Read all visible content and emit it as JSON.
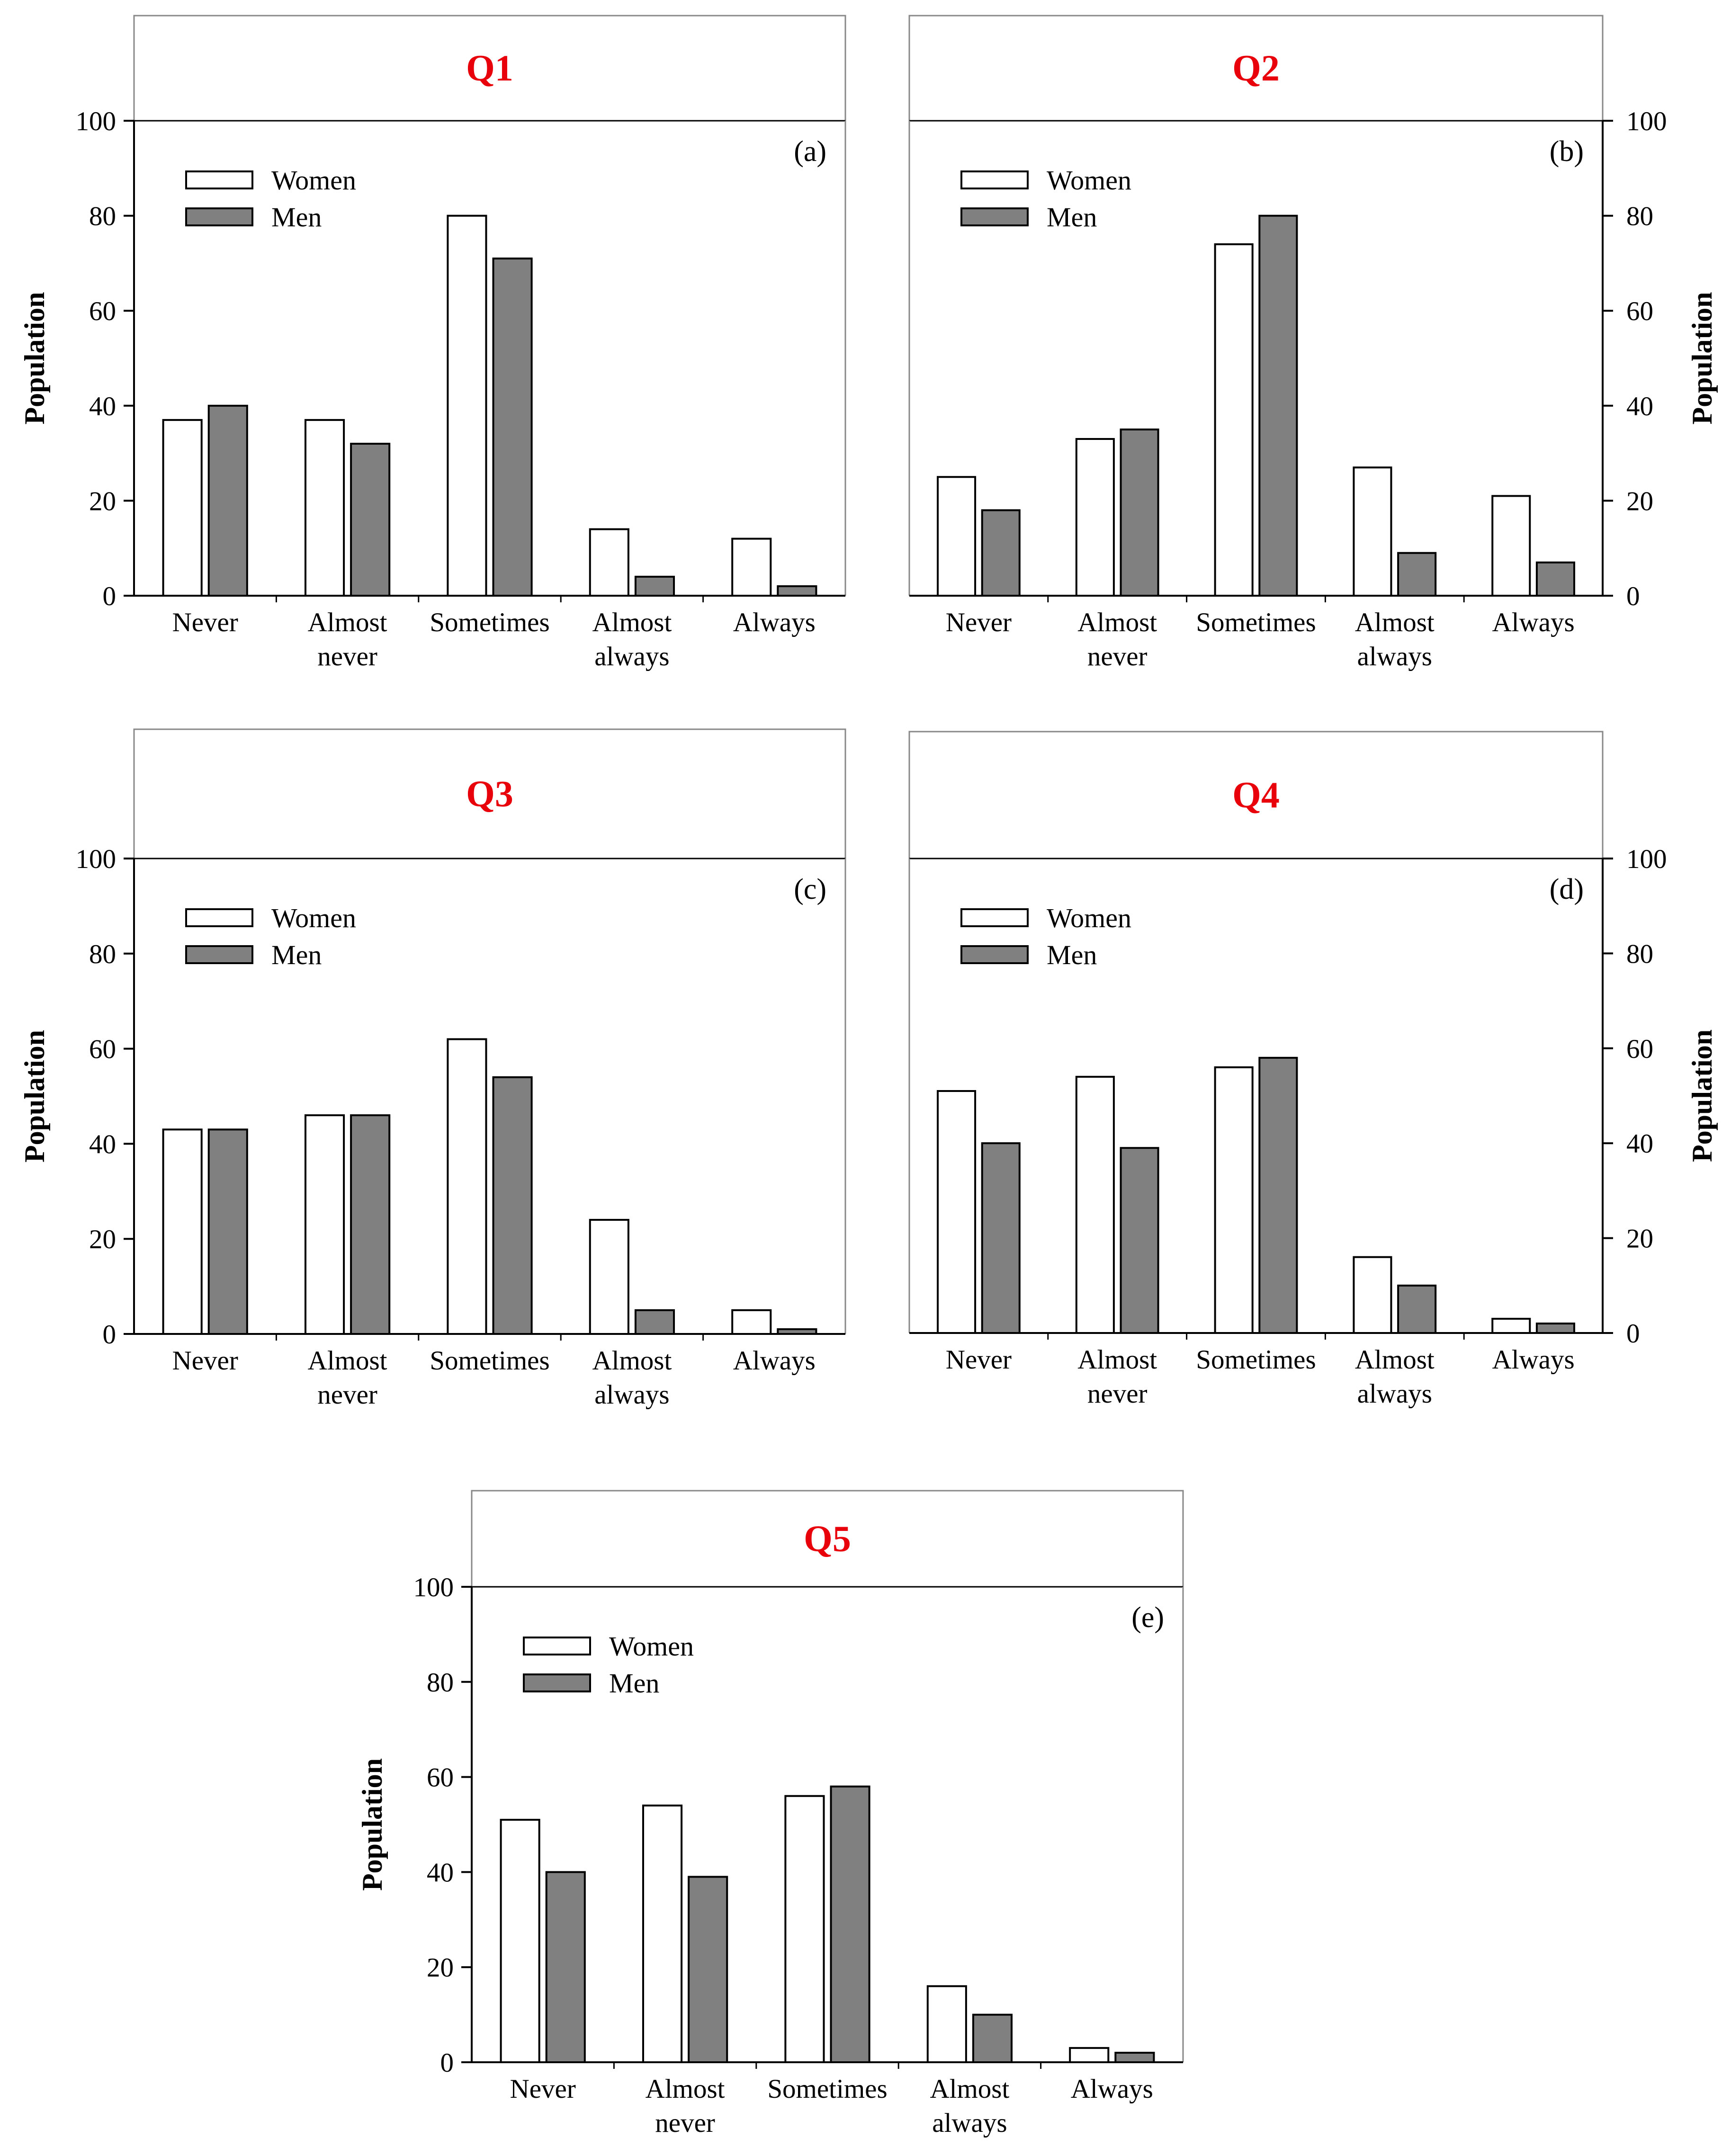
{
  "colors": {
    "women": "#ffffff",
    "men": "#808080",
    "title": "#e8000b",
    "axis": "#000000",
    "frame": "#888888"
  },
  "chart_data": [
    {
      "type": "bar",
      "title": "Q1",
      "panel": "(a)",
      "ylabel": "Population",
      "ylim": [
        0,
        100
      ],
      "yticks": [
        "0",
        "20",
        "40",
        "60",
        "80",
        "100"
      ],
      "yaxis_side": "left",
      "legend": [
        "Women",
        "Men"
      ],
      "categories": [
        [
          "Never"
        ],
        [
          "Almost",
          "never"
        ],
        [
          "Sometimes"
        ],
        [
          "Almost",
          "always"
        ],
        [
          "Always"
        ]
      ],
      "series": [
        {
          "name": "Women",
          "values": [
            37,
            37,
            80,
            14,
            12
          ]
        },
        {
          "name": "Men",
          "values": [
            40,
            32,
            71,
            4,
            2
          ]
        }
      ]
    },
    {
      "type": "bar",
      "title": "Q2",
      "panel": "(b)",
      "ylabel": "Population",
      "ylim": [
        0,
        100
      ],
      "yticks": [
        "0",
        "20",
        "40",
        "60",
        "80",
        "100"
      ],
      "yaxis_side": "right",
      "legend": [
        "Women",
        "Men"
      ],
      "categories": [
        [
          "Never"
        ],
        [
          "Almost",
          "never"
        ],
        [
          "Sometimes"
        ],
        [
          "Almost",
          "always"
        ],
        [
          "Always"
        ]
      ],
      "series": [
        {
          "name": "Women",
          "values": [
            25,
            33,
            74,
            27,
            21
          ]
        },
        {
          "name": "Men",
          "values": [
            18,
            35,
            80,
            9,
            7
          ]
        }
      ]
    },
    {
      "type": "bar",
      "title": "Q3",
      "panel": "(c)",
      "ylabel": "Population",
      "ylim": [
        0,
        100
      ],
      "yticks": [
        "0",
        "20",
        "40",
        "60",
        "80",
        "100"
      ],
      "yaxis_side": "left",
      "legend": [
        "Women",
        "Men"
      ],
      "categories": [
        [
          "Never"
        ],
        [
          "Almost",
          "never"
        ],
        [
          "Sometimes"
        ],
        [
          "Almost",
          "always"
        ],
        [
          "Always"
        ]
      ],
      "series": [
        {
          "name": "Women",
          "values": [
            43,
            46,
            62,
            24,
            5
          ]
        },
        {
          "name": "Men",
          "values": [
            43,
            46,
            54,
            5,
            1
          ]
        }
      ]
    },
    {
      "type": "bar",
      "title": "Q4",
      "panel": "(d)",
      "ylabel": "Population",
      "ylim": [
        0,
        100
      ],
      "yticks": [
        "0",
        "20",
        "40",
        "60",
        "80",
        "100"
      ],
      "yaxis_side": "right",
      "legend": [
        "Women",
        "Men"
      ],
      "categories": [
        [
          "Never"
        ],
        [
          "Almost",
          "never"
        ],
        [
          "Sometimes"
        ],
        [
          "Almost",
          "always"
        ],
        [
          "Always"
        ]
      ],
      "series": [
        {
          "name": "Women",
          "values": [
            51,
            54,
            56,
            16,
            3
          ]
        },
        {
          "name": "Men",
          "values": [
            40,
            39,
            58,
            10,
            2
          ]
        }
      ]
    },
    {
      "type": "bar",
      "title": "Q5",
      "panel": "(e)",
      "ylabel": "Population",
      "ylim": [
        0,
        100
      ],
      "yticks": [
        "0",
        "20",
        "40",
        "60",
        "80",
        "100"
      ],
      "yaxis_side": "left",
      "legend": [
        "Women",
        "Men"
      ],
      "categories": [
        [
          "Never"
        ],
        [
          "Almost",
          "never"
        ],
        [
          "Sometimes"
        ],
        [
          "Almost",
          "always"
        ],
        [
          "Always"
        ]
      ],
      "series": [
        {
          "name": "Women",
          "values": [
            51,
            54,
            56,
            16,
            3
          ]
        },
        {
          "name": "Men",
          "values": [
            40,
            39,
            58,
            10,
            2
          ]
        }
      ]
    }
  ]
}
